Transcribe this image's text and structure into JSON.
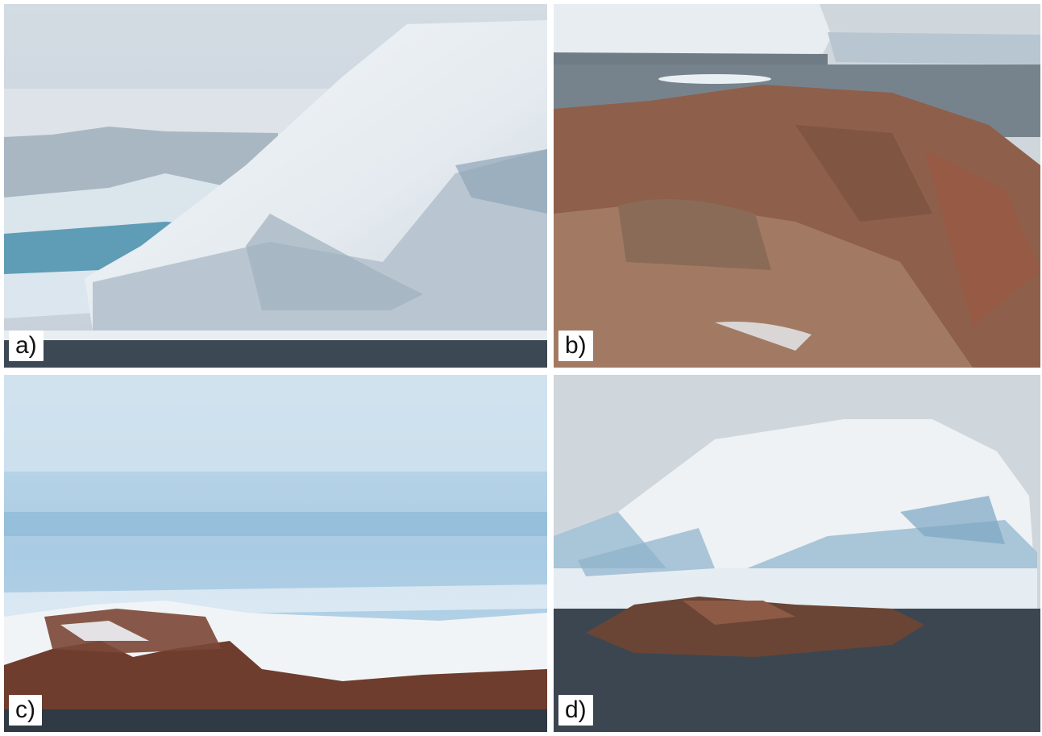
{
  "figure": {
    "panels": [
      {
        "id": "a",
        "label": "a)"
      },
      {
        "id": "b",
        "label": "b)"
      },
      {
        "id": "c",
        "label": "c)"
      },
      {
        "id": "d",
        "label": "d)"
      }
    ],
    "colors": {
      "sky": "#c9d3dc",
      "ice": "#e8eef3",
      "ice_blue": "#8fb8d4",
      "rock": "#9a6a55",
      "water": "#3f4b57"
    }
  }
}
